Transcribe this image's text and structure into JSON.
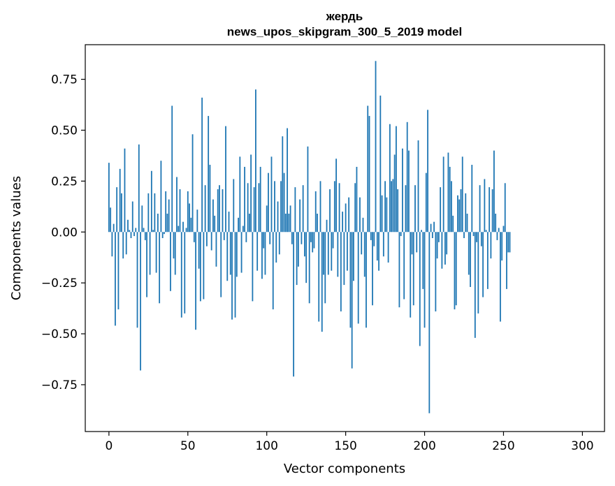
{
  "chart_data": {
    "type": "bar",
    "title": "жердь",
    "subtitle": "news_upos_skipgram_300_5_2019 model",
    "xlabel": "Vector components",
    "ylabel": "Components values",
    "xlim": [
      -15,
      314
    ],
    "ylim": [
      -0.98,
      0.92
    ],
    "xticks": [
      0,
      50,
      100,
      150,
      200,
      250,
      300
    ],
    "yticks": [
      -0.75,
      -0.5,
      -0.25,
      0.0,
      0.25,
      0.5,
      0.75
    ],
    "ytick_labels": [
      "−0.75",
      "−0.50",
      "−0.25",
      "0.00",
      "0.25",
      "0.50",
      "0.75"
    ],
    "grid": false,
    "color": "#1f77b4",
    "values": [
      0.34,
      0.12,
      -0.12,
      0.04,
      -0.46,
      0.22,
      -0.38,
      0.31,
      0.19,
      -0.13,
      0.41,
      -0.11,
      0.06,
      0.01,
      -0.03,
      0.15,
      -0.02,
      0.02,
      -0.47,
      0.43,
      -0.68,
      0.13,
      0.02,
      -0.04,
      -0.32,
      0.19,
      -0.21,
      0.3,
      0.01,
      0.19,
      -0.2,
      0.09,
      -0.35,
      0.35,
      -0.03,
      -0.01,
      0.2,
      0.09,
      0.16,
      -0.29,
      0.62,
      -0.13,
      -0.21,
      0.27,
      0.03,
      0.21,
      -0.42,
      0.05,
      -0.4,
      0.02,
      0.2,
      0.14,
      0.07,
      0.48,
      -0.05,
      -0.48,
      0.11,
      -0.18,
      -0.34,
      0.66,
      -0.33,
      0.23,
      -0.07,
      0.57,
      0.33,
      -0.09,
      0.16,
      0.08,
      -0.17,
      0.21,
      0.23,
      -0.32,
      0.21,
      -0.04,
      0.52,
      -0.24,
      0.1,
      -0.21,
      -0.43,
      0.26,
      -0.42,
      -0.22,
      0.07,
      0.37,
      -0.2,
      0.03,
      0.32,
      -0.05,
      0.24,
      0.09,
      0.38,
      -0.34,
      0.22,
      0.7,
      -0.19,
      0.24,
      0.32,
      -0.23,
      -0.08,
      -0.21,
      0.13,
      0.29,
      -0.06,
      0.37,
      -0.38,
      0.25,
      -0.15,
      0.15,
      -0.11,
      0.25,
      0.47,
      0.29,
      0.09,
      0.51,
      0.09,
      0.13,
      -0.06,
      -0.71,
      0.22,
      -0.26,
      -0.17,
      0.16,
      -0.06,
      0.23,
      -0.12,
      -0.25,
      0.42,
      -0.35,
      -0.05,
      -0.1,
      -0.08,
      0.2,
      0.09,
      -0.44,
      0.25,
      -0.49,
      -0.21,
      -0.35,
      0.06,
      -0.21,
      0.21,
      -0.19,
      -0.08,
      0.25,
      0.36,
      -0.22,
      0.24,
      -0.39,
      0.1,
      -0.26,
      0.14,
      -0.19,
      0.17,
      -0.47,
      -0.67,
      -0.24,
      0.24,
      0.32,
      -0.45,
      0.17,
      -0.11,
      0.07,
      -0.22,
      -0.47,
      0.62,
      0.57,
      -0.04,
      -0.36,
      -0.07,
      0.84,
      -0.14,
      -0.19,
      0.67,
      0.18,
      -0.12,
      0.25,
      0.17,
      -0.15,
      0.53,
      0.25,
      0.26,
      0.38,
      0.52,
      0.21,
      -0.37,
      -0.02,
      0.41,
      -0.33,
      0.23,
      0.54,
      0.4,
      -0.42,
      -0.11,
      -0.36,
      0.23,
      -0.1,
      0.45,
      -0.56,
      0.01,
      -0.28,
      -0.47,
      0.29,
      0.6,
      -0.89,
      0.04,
      -0.03,
      0.05,
      -0.39,
      -0.13,
      -0.05,
      0.22,
      -0.18,
      0.37,
      -0.16,
      -0.11,
      0.39,
      0.32,
      0.25,
      0.08,
      -0.38,
      -0.36,
      0.18,
      0.16,
      0.21,
      0.37,
      -0.03,
      0.19,
      0.09,
      -0.21,
      -0.27,
      0.33,
      -0.02,
      -0.52,
      -0.05,
      -0.4,
      0.23,
      -0.07,
      -0.32,
      0.26,
      0.01,
      -0.28,
      0.22,
      -0.13,
      0.21,
      0.4,
      0.09,
      -0.04,
      0.02,
      -0.44,
      -0.14,
      0.03,
      0.24,
      -0.28,
      -0.1,
      -0.1
    ]
  }
}
